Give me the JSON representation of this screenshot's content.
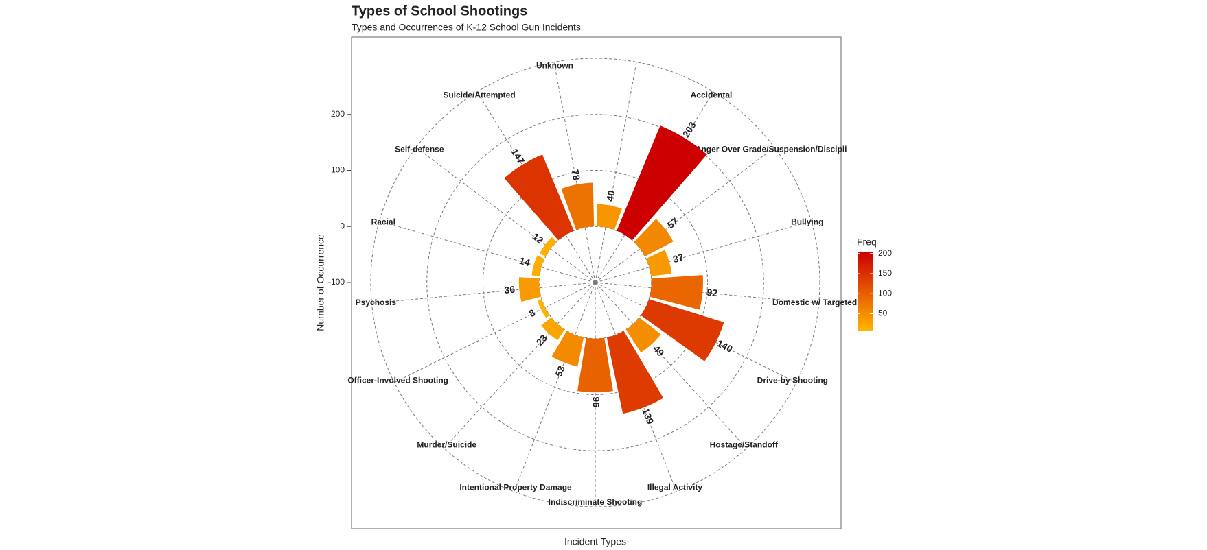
{
  "chart_data": {
    "type": "polar_bar",
    "title": "Types of School Shootings",
    "subtitle": "Types and Occurrences of K-12 School Gun Incidents",
    "x_label": "Incident Types",
    "y_label": "Number of Occurrence",
    "categories": [
      null,
      "Accidental",
      "Anger Over Grade/Suspension/Discipli",
      "Bullying",
      "Domestic w/ Targeted",
      "Drive-by Shooting",
      "Hostage/Standoff",
      "Illegal Activity",
      "Indiscriminate Shooting",
      "Intentional Property Damage",
      "Murder/Suicide",
      "Officer-Involved Shooting",
      "Psychosis",
      "Racial",
      "Self-defense",
      "Suicide/Attempted",
      "Unknown"
    ],
    "values": [
      40,
      203,
      57,
      37,
      92,
      140,
      49,
      139,
      96,
      53,
      23,
      8,
      36,
      14,
      12,
      147,
      78
    ],
    "ylim": [
      -100,
      300
    ],
    "yticks": [
      -100,
      0,
      100,
      200
    ],
    "grid": true,
    "legend": {
      "title": "Freq",
      "ticks": [
        50,
        100,
        150,
        200
      ]
    },
    "color_scale": {
      "low": "#FFB400",
      "high": "#CC0000"
    }
  }
}
